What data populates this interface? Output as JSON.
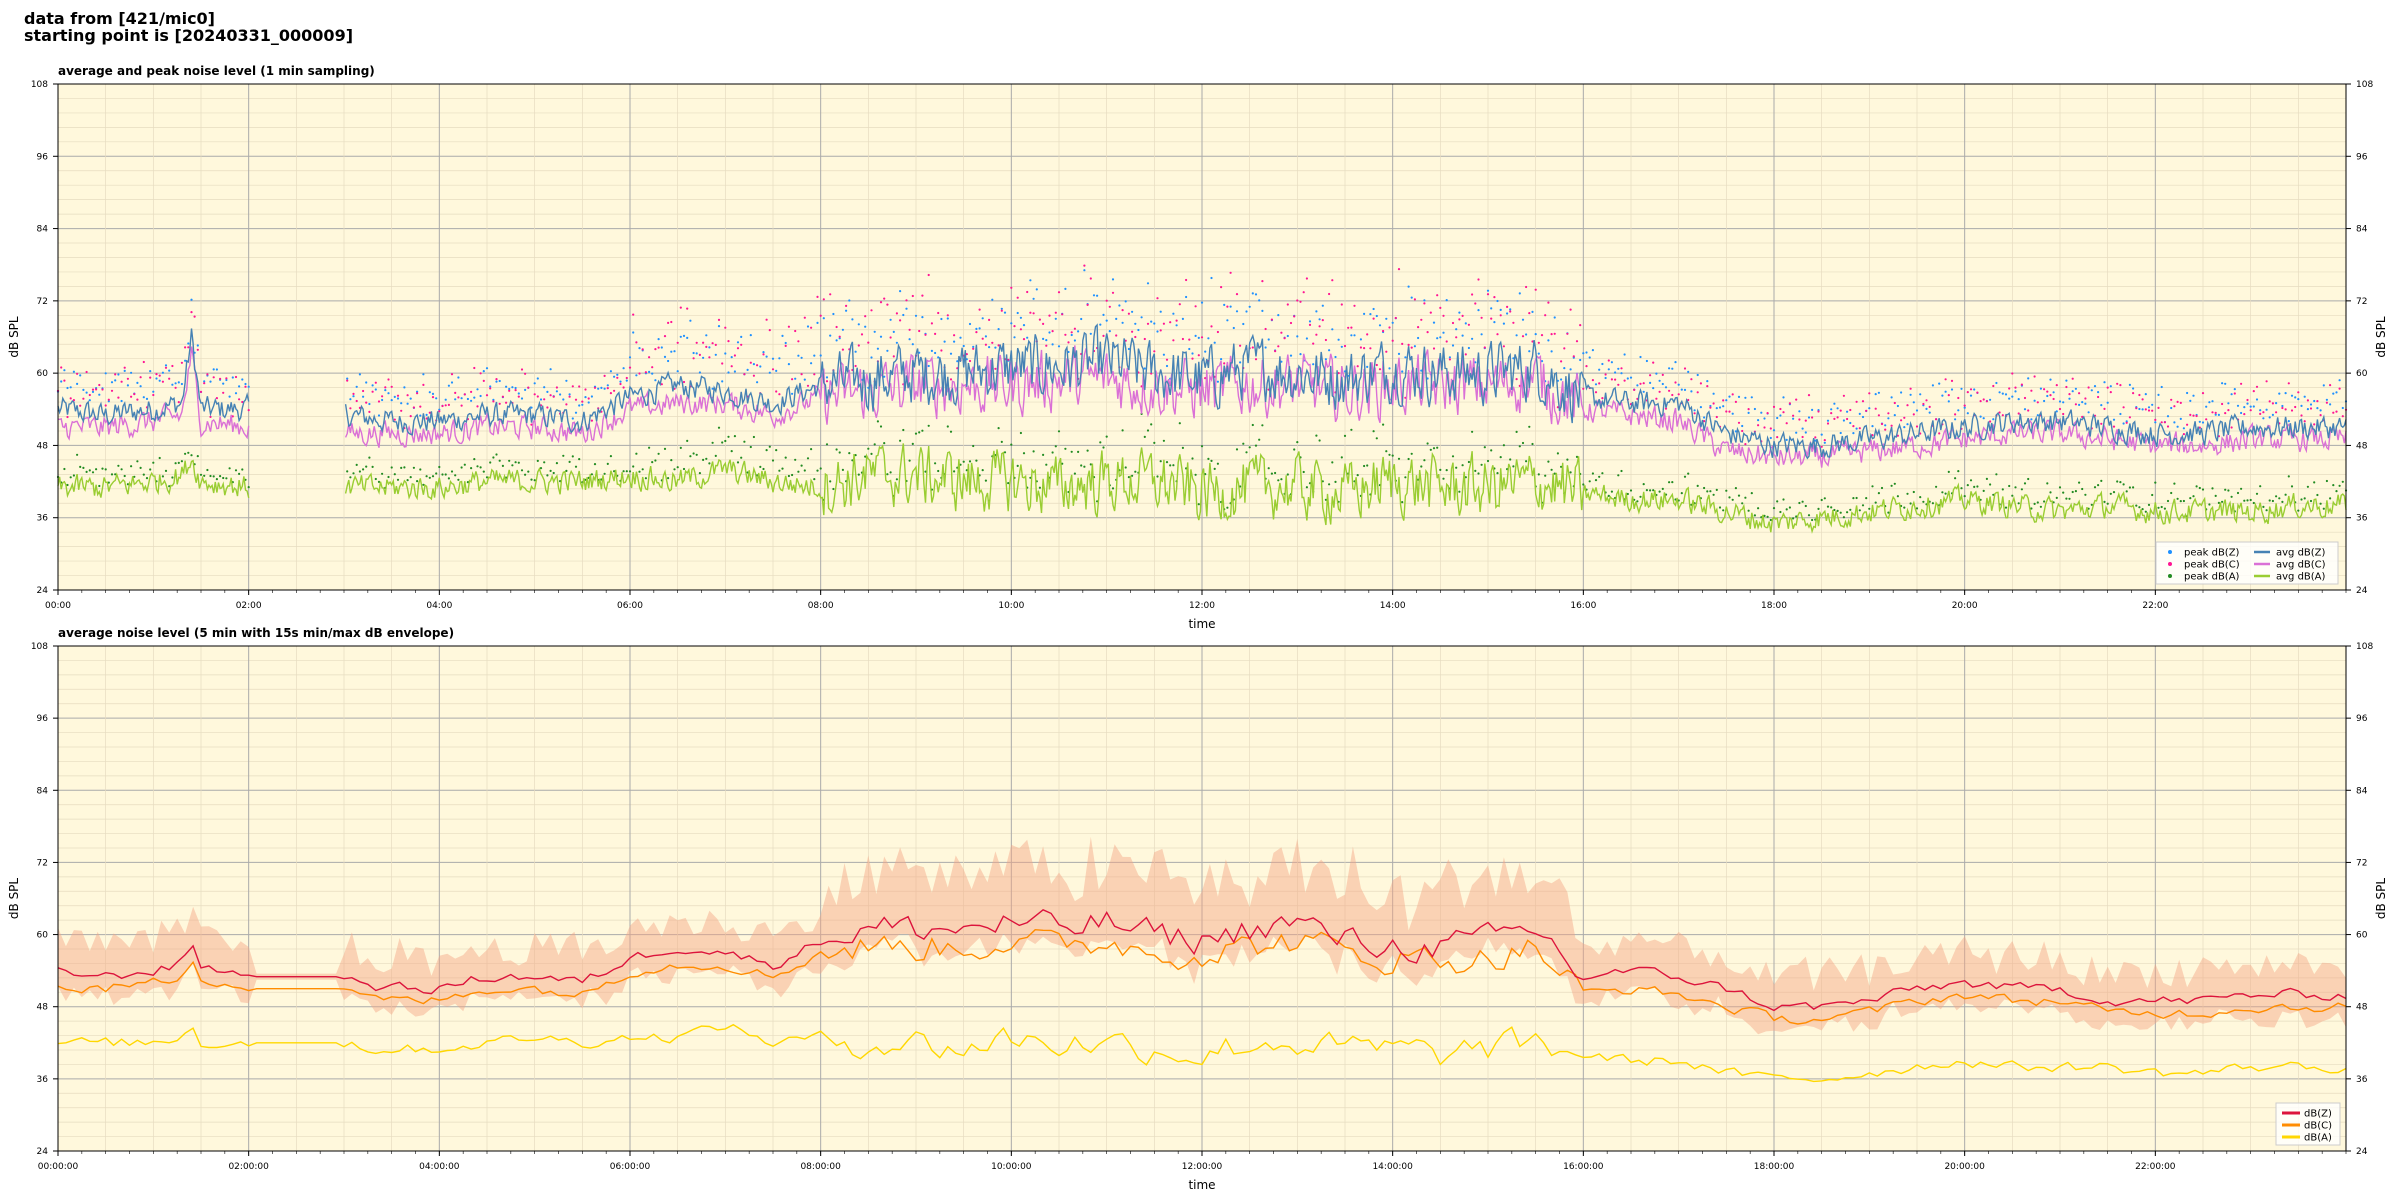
{
  "header": {
    "line1": "data from [421/mic0]",
    "line2": "starting point is [20240331_000009]"
  },
  "colors": {
    "background": "#fff8dc",
    "zLine": "#4682b4",
    "cLine": "#da70d6",
    "aLine": "#9acd32",
    "zPeak": "#1e90ff",
    "cPeak": "#ff1493",
    "aPeak": "#228b22",
    "env": "#f4a582",
    "z5": "#dc143c",
    "c5": "#ff8c00",
    "a5": "#ffd700"
  },
  "chart_data": [
    {
      "type": "line",
      "title": "average and peak noise level (1 min sampling)",
      "xlabel": "time",
      "ylabel": "dB SPL",
      "ylim": [
        24,
        108
      ],
      "yticks": [
        "24",
        "36",
        "48",
        "60",
        "72",
        "84",
        "96",
        "108"
      ],
      "xlim_hours": [
        0,
        24
      ],
      "xticks": [
        "00:00",
        "02:00",
        "04:00",
        "06:00",
        "08:00",
        "10:00",
        "12:00",
        "14:00",
        "16:00",
        "18:00",
        "20:00",
        "22:00"
      ],
      "grid": true,
      "legend": "bottom-right",
      "legend_entries": [
        "peak dB(Z)",
        "peak dB(C)",
        "peak dB(A)",
        "avg dB(Z)",
        "avg dB(C)",
        "avg dB(A)"
      ],
      "gap_hours": [
        2.0,
        3.0
      ],
      "series": [
        {
          "name": "avg dB(Z)",
          "key": "z",
          "hours": [
            0,
            0.5,
            1,
            1.3,
            1.4,
            1.5,
            2,
            3.05,
            3.5,
            4,
            4.5,
            5,
            5.5,
            6,
            6.5,
            7,
            7.5,
            8,
            8.5,
            9,
            9.5,
            10,
            10.5,
            11,
            11.5,
            12,
            12.5,
            13,
            13.5,
            14,
            14.5,
            15,
            15.5,
            16,
            16.5,
            17,
            17.5,
            18,
            18.5,
            19,
            19.5,
            20,
            20.5,
            21,
            21.5,
            22,
            22.5,
            23,
            23.5,
            24
          ],
          "values": [
            54,
            53,
            54,
            55,
            66,
            54,
            54,
            53,
            52,
            52,
            53,
            53,
            52,
            56,
            58,
            57,
            55,
            58,
            59,
            60,
            60,
            61,
            61,
            62,
            60,
            59,
            61,
            60,
            59,
            61,
            60,
            60,
            61,
            56,
            55,
            55,
            50,
            48,
            48,
            49,
            50,
            51,
            52,
            52,
            51,
            50,
            50,
            51,
            51,
            51
          ]
        },
        {
          "name": "avg dB(C)",
          "key": "c",
          "hours": [
            0,
            0.5,
            1,
            1.3,
            1.4,
            1.5,
            2,
            3.05,
            3.5,
            4,
            4.5,
            5,
            5.5,
            6,
            6.5,
            7,
            7.5,
            8,
            8.5,
            9,
            9.5,
            10,
            10.5,
            11,
            11.5,
            12,
            12.5,
            13,
            13.5,
            14,
            14.5,
            15,
            15.5,
            16,
            16.5,
            17,
            17.5,
            18,
            18.5,
            19,
            19.5,
            20,
            20.5,
            21,
            21.5,
            22,
            22.5,
            23,
            23.5,
            24
          ],
          "values": [
            51,
            51,
            52,
            53,
            63,
            52,
            51,
            50,
            50,
            50,
            51,
            51,
            50,
            54,
            55,
            55,
            53,
            56,
            57,
            58,
            58,
            58,
            59,
            59,
            58,
            57,
            58,
            58,
            57,
            58,
            58,
            58,
            59,
            54,
            53,
            52,
            47,
            46,
            46,
            47,
            48,
            49,
            50,
            50,
            49,
            48,
            48,
            49,
            49,
            49
          ]
        },
        {
          "name": "avg dB(A)",
          "key": "a",
          "hours": [
            0,
            0.5,
            1,
            1.3,
            1.4,
            1.5,
            2,
            3.05,
            3.5,
            4,
            4.5,
            5,
            5.5,
            6,
            6.5,
            7,
            7.5,
            8,
            8.5,
            9,
            9.5,
            10,
            10.5,
            11,
            11.5,
            12,
            12.5,
            13,
            13.5,
            14,
            14.5,
            15,
            15.5,
            16,
            16.5,
            17,
            17.5,
            18,
            18.5,
            19,
            19.5,
            20,
            20.5,
            21,
            21.5,
            22,
            22.5,
            23,
            23.5,
            24
          ],
          "values": [
            41,
            41,
            42,
            43,
            46,
            42,
            41,
            41,
            41,
            41,
            42,
            42,
            42,
            43,
            42,
            44,
            42,
            41,
            43,
            43,
            42,
            42,
            41,
            42,
            42,
            40,
            41,
            41,
            40,
            42,
            41,
            41,
            42,
            40,
            39,
            39,
            37,
            35,
            36,
            37,
            38,
            39,
            38,
            37,
            38,
            37,
            37,
            37,
            38,
            38
          ]
        }
      ],
      "peaks": [
        {
          "name": "peak dB(Z)",
          "offset_db": 6
        },
        {
          "name": "peak dB(C)",
          "offset_db": 8
        },
        {
          "name": "peak dB(A)",
          "offset_db": 3
        }
      ]
    },
    {
      "type": "line",
      "title": "average noise level (5 min with 15s min/max dB envelope)",
      "xlabel": "time",
      "ylabel": "dB SPL",
      "ylim": [
        24,
        108
      ],
      "yticks": [
        "24",
        "36",
        "48",
        "60",
        "72",
        "84",
        "96",
        "108"
      ],
      "xlim_hours": [
        0,
        24
      ],
      "xticks": [
        "00:00:00",
        "02:00:00",
        "04:00:00",
        "06:00:00",
        "08:00:00",
        "10:00:00",
        "12:00:00",
        "14:00:00",
        "16:00:00",
        "18:00:00",
        "20:00:00",
        "22:00:00"
      ],
      "grid": true,
      "legend": "bottom-right",
      "legend_entries": [
        "dB(Z)",
        "dB(C)",
        "dB(A)"
      ],
      "flat_hours": [
        2.0,
        3.0
      ],
      "series": [
        {
          "name": "dB(Z)",
          "key": "z",
          "hours": [
            0,
            0.5,
            1,
            1.3,
            1.4,
            1.5,
            2,
            3,
            3.05,
            3.1,
            3.5,
            4,
            4.5,
            5,
            5.5,
            6,
            6.5,
            7,
            7.5,
            8,
            8.5,
            9,
            9.5,
            10,
            10.5,
            11,
            11.5,
            12,
            12.5,
            13,
            13.5,
            14,
            14.5,
            15,
            15.5,
            16,
            16.5,
            17,
            17.5,
            18,
            18.5,
            19,
            19.5,
            20,
            20.5,
            21,
            21.5,
            22,
            22.5,
            23,
            23.5,
            24
          ],
          "values": [
            54,
            53,
            54,
            55,
            59,
            55,
            53,
            53,
            57,
            52,
            51,
            51,
            53,
            53,
            52,
            56,
            58,
            57,
            55,
            59,
            61,
            61,
            61,
            62,
            61,
            62,
            60,
            59,
            61,
            62,
            59,
            58,
            58,
            59,
            61,
            53,
            54,
            53,
            51,
            48,
            48,
            49,
            51,
            52,
            51,
            51,
            49,
            49,
            49,
            50,
            50,
            50
          ]
        },
        {
          "name": "dB(C)",
          "key": "c",
          "hours": [
            0,
            0.5,
            1,
            1.3,
            1.4,
            1.5,
            2,
            3,
            3.05,
            3.1,
            3.5,
            4,
            4.5,
            5,
            5.5,
            6,
            6.5,
            7,
            7.5,
            8,
            8.5,
            9,
            9.5,
            10,
            10.5,
            11,
            11.5,
            12,
            12.5,
            13,
            13.5,
            14,
            14.5,
            15,
            15.5,
            16,
            16.5,
            17,
            17.5,
            18,
            18.5,
            19,
            19.5,
            20,
            20.5,
            21,
            21.5,
            22,
            22.5,
            23,
            23.5,
            24
          ],
          "values": [
            51,
            51,
            52,
            53,
            57,
            53,
            51,
            51,
            54,
            50,
            49,
            49,
            51,
            51,
            50,
            54,
            55,
            55,
            53,
            57,
            58,
            58,
            58,
            59,
            58,
            59,
            57,
            57,
            58,
            59,
            57,
            56,
            56,
            56,
            58,
            50,
            51,
            50,
            48,
            46,
            46,
            47,
            49,
            50,
            49,
            49,
            47,
            47,
            47,
            48,
            48,
            48
          ]
        },
        {
          "name": "dB(A)",
          "key": "a",
          "hours": [
            0,
            0.5,
            1,
            1.3,
            1.4,
            1.5,
            2,
            3,
            3.05,
            3.1,
            3.5,
            4,
            4.5,
            5,
            5.5,
            6,
            6.5,
            7,
            7.5,
            8,
            8.5,
            9,
            9.5,
            10,
            10.5,
            11,
            11.5,
            12,
            12.5,
            13,
            13.5,
            14,
            14.5,
            15,
            15.5,
            16,
            16.5,
            17,
            17.5,
            18,
            18.5,
            19,
            19.5,
            20,
            20.5,
            21,
            21.5,
            22,
            22.5,
            23,
            23.5,
            24
          ],
          "values": [
            42,
            42,
            42,
            43,
            45,
            42,
            42,
            42,
            44,
            41,
            41,
            41,
            42,
            43,
            42,
            43,
            43,
            45,
            42,
            43,
            42,
            42,
            41,
            43,
            42,
            42,
            41,
            40,
            42,
            42,
            41,
            41,
            40,
            41,
            42,
            40,
            39,
            39,
            37,
            36,
            36,
            37,
            38,
            39,
            38,
            38,
            38,
            37,
            37,
            38,
            38,
            38
          ]
        }
      ],
      "envelope": {
        "min_offset_db": -4,
        "max_offset_db": 10
      }
    }
  ]
}
